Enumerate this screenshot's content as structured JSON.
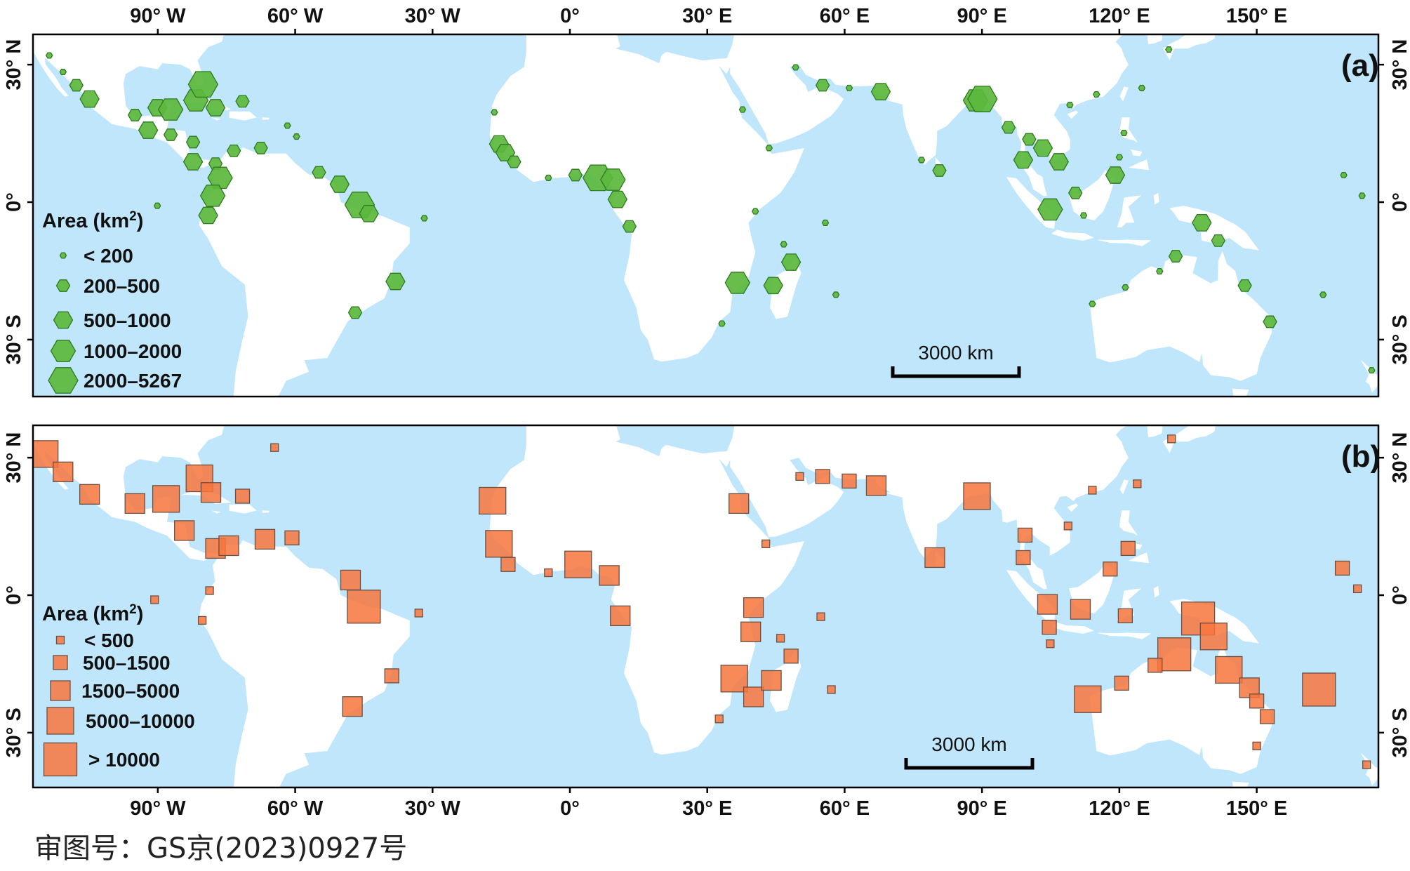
{
  "colors": {
    "ocean": "#bfe6fb",
    "land": "#ffffff",
    "hexagon_fill": "#5cb83c",
    "hexagon_stroke": "#2f7a22",
    "square_fill": "#f7763d",
    "square_stroke": "#6b5044"
  },
  "lon_ticks": [
    {
      "lon": -90,
      "label": "90° W"
    },
    {
      "lon": -60,
      "label": "60° W"
    },
    {
      "lon": -30,
      "label": "30° W"
    },
    {
      "lon": 0,
      "label": "0°"
    },
    {
      "lon": 30,
      "label": "30° E"
    },
    {
      "lon": 60,
      "label": "60° E"
    },
    {
      "lon": 90,
      "label": "90° E"
    },
    {
      "lon": 120,
      "label": "120° E"
    },
    {
      "lon": 150,
      "label": "150° E"
    }
  ],
  "lat_ticks": [
    {
      "lat": 30,
      "label": "30° N"
    },
    {
      "lat": 0,
      "label": "0°"
    },
    {
      "lat": -30,
      "label": "30° S"
    }
  ],
  "panels": [
    {
      "label": "(a)",
      "marker": "hexagon",
      "scale_bar": "3000 km",
      "legend": {
        "title": "Area (km",
        "title_sup": "2",
        "title_end": ")",
        "classes": [
          "< 200",
          "200–500",
          "500–1000",
          "1000–2000",
          "2000–5267"
        ]
      },
      "points": [
        [
          -113.7,
          32,
          0
        ],
        [
          -110.7,
          28.4,
          0
        ],
        [
          -107.8,
          25.5,
          1
        ],
        [
          -104.9,
          22.5,
          2
        ],
        [
          -95,
          19,
          1
        ],
        [
          -90.1,
          20.6,
          2
        ],
        [
          -87.2,
          20.2,
          3
        ],
        [
          -81.7,
          22.2,
          3
        ],
        [
          -80.1,
          25.7,
          4
        ],
        [
          -77.4,
          20.6,
          2
        ],
        [
          -71.5,
          22,
          1
        ],
        [
          -92.1,
          15.7,
          2
        ],
        [
          -87.2,
          14.7,
          1
        ],
        [
          -82.3,
          13.1,
          1
        ],
        [
          -82.3,
          8.8,
          2
        ],
        [
          -77.4,
          8.4,
          1
        ],
        [
          -76.4,
          5.3,
          3
        ],
        [
          -78,
          1.4,
          3
        ],
        [
          -79,
          -2.9,
          2
        ],
        [
          -90.1,
          -0.8,
          0
        ],
        [
          -73.4,
          11.2,
          1
        ],
        [
          -67.5,
          11.8,
          1
        ],
        [
          -61.7,
          16.7,
          0
        ],
        [
          -59.7,
          14.3,
          0
        ],
        [
          -54.8,
          6.5,
          1
        ],
        [
          -50.3,
          3.9,
          2
        ],
        [
          -45.9,
          -0.6,
          4
        ],
        [
          -43.9,
          -2.5,
          2
        ],
        [
          -31.8,
          -3.5,
          0
        ],
        [
          -38.1,
          -17.3,
          2
        ],
        [
          -46.9,
          -24.1,
          1
        ],
        [
          -16.5,
          19.6,
          0
        ],
        [
          -15.5,
          12.7,
          2
        ],
        [
          -14.1,
          10.8,
          2
        ],
        [
          -12.2,
          8.8,
          1
        ],
        [
          -4.7,
          5.3,
          0
        ],
        [
          1.2,
          5.9,
          1
        ],
        [
          6.1,
          5.3,
          4
        ],
        [
          9.4,
          4.9,
          3
        ],
        [
          10.4,
          0.6,
          2
        ],
        [
          13,
          -5.3,
          1
        ],
        [
          37.7,
          20.2,
          0
        ],
        [
          43.5,
          11.8,
          0
        ],
        [
          40.5,
          -2,
          0
        ],
        [
          36.6,
          -17.6,
          3
        ],
        [
          44.4,
          -18.2,
          2
        ],
        [
          48.3,
          -13.1,
          2
        ],
        [
          46.7,
          -9.2,
          0
        ],
        [
          33.2,
          -26.5,
          0
        ],
        [
          49.3,
          29.4,
          0
        ],
        [
          55.2,
          25.5,
          1
        ],
        [
          61,
          24.9,
          0
        ],
        [
          67.9,
          24.1,
          2
        ],
        [
          76.8,
          9.2,
          0
        ],
        [
          80.7,
          6.9,
          1
        ],
        [
          88.6,
          22.2,
          3
        ],
        [
          90.1,
          22.5,
          4
        ],
        [
          95.8,
          16.3,
          1
        ],
        [
          100.3,
          13.7,
          1
        ],
        [
          103.3,
          11.8,
          2
        ],
        [
          106.8,
          8.8,
          2
        ],
        [
          99,
          9.2,
          2
        ],
        [
          104.9,
          -1.6,
          3
        ],
        [
          110.4,
          2,
          1
        ],
        [
          112.2,
          -2.9,
          0
        ],
        [
          119.1,
          5.9,
          2
        ],
        [
          121,
          15.1,
          0
        ],
        [
          109.2,
          21.2,
          0
        ],
        [
          115,
          23.5,
          0
        ],
        [
          124.9,
          24.9,
          0
        ],
        [
          120,
          9.8,
          0
        ],
        [
          130.8,
          33.3,
          0
        ],
        [
          138,
          -4.5,
          2
        ],
        [
          141.6,
          -8.4,
          1
        ],
        [
          132.3,
          -11.8,
          1
        ],
        [
          128.8,
          -15.1,
          0
        ],
        [
          147.4,
          -18.2,
          1
        ],
        [
          152.9,
          -26.1,
          1
        ],
        [
          121.3,
          -18.6,
          0
        ],
        [
          114.1,
          -22.2,
          0
        ],
        [
          58.1,
          -20.2,
          0
        ],
        [
          55.8,
          -4.5,
          0
        ],
        [
          169,
          5.9,
          0
        ],
        [
          173,
          1.4,
          0
        ],
        [
          164.5,
          -20.2,
          0
        ],
        [
          175.1,
          -36.7,
          0
        ]
      ]
    },
    {
      "label": "(b)",
      "marker": "square",
      "scale_bar": "3000 km",
      "legend": {
        "title": "Area (km",
        "title_sup": "2",
        "title_end": ")",
        "classes": [
          "< 500",
          "500–1500",
          "1500–5000",
          "5000–10000",
          "> 10000"
        ]
      },
      "points": [
        [
          -114.7,
          30.8,
          3
        ],
        [
          -110.7,
          26.9,
          2
        ],
        [
          -104.9,
          22,
          2
        ],
        [
          -95,
          20,
          2
        ],
        [
          -88.2,
          21,
          3
        ],
        [
          -80.9,
          25.5,
          3
        ],
        [
          -78.4,
          22.4,
          2
        ],
        [
          -71.5,
          21.6,
          1
        ],
        [
          -84.2,
          14.1,
          2
        ],
        [
          -77.4,
          10.2,
          2
        ],
        [
          -74.5,
          10.8,
          2
        ],
        [
          -66.6,
          12.2,
          2
        ],
        [
          -60.7,
          12.5,
          1
        ],
        [
          -64.5,
          32.2,
          0
        ],
        [
          -47.9,
          3.3,
          2
        ],
        [
          -45,
          -2.5,
          4
        ],
        [
          -90.7,
          -1,
          0
        ],
        [
          -78.7,
          1,
          0
        ],
        [
          -80.3,
          -5.5,
          0
        ],
        [
          -33,
          -3.9,
          0
        ],
        [
          -38.9,
          -17.6,
          1
        ],
        [
          -47.5,
          -24.3,
          2
        ],
        [
          -16.9,
          20.6,
          3
        ],
        [
          -15.5,
          11.2,
          3
        ],
        [
          -13.5,
          6.7,
          1
        ],
        [
          -4.7,
          4.9,
          0
        ],
        [
          1.8,
          6.7,
          3
        ],
        [
          8.6,
          4.3,
          2
        ],
        [
          11,
          -4.5,
          2
        ],
        [
          36.9,
          20,
          2
        ],
        [
          42.8,
          11.2,
          0
        ],
        [
          40.1,
          -2.7,
          2
        ],
        [
          39.5,
          -8,
          2
        ],
        [
          35.9,
          -18.2,
          3
        ],
        [
          40.1,
          -22.2,
          2
        ],
        [
          44,
          -18.6,
          2
        ],
        [
          48.3,
          -13.3,
          1
        ],
        [
          46,
          -9.4,
          0
        ],
        [
          32.6,
          -27,
          0
        ],
        [
          50.2,
          25.9,
          0
        ],
        [
          55.2,
          25.9,
          1
        ],
        [
          61,
          24.9,
          1
        ],
        [
          66.9,
          23.9,
          2
        ],
        [
          79.7,
          8.2,
          2
        ],
        [
          88.9,
          21.6,
          3
        ],
        [
          99.4,
          13.1,
          1
        ],
        [
          99,
          8.2,
          1
        ],
        [
          104.3,
          -2,
          2
        ],
        [
          104.7,
          -7,
          1
        ],
        [
          104.9,
          -10.6,
          0
        ],
        [
          111.5,
          -3.1,
          2
        ],
        [
          118,
          5.7,
          1
        ],
        [
          121.9,
          10.2,
          1
        ],
        [
          121.3,
          -4.5,
          1
        ],
        [
          108.8,
          15.1,
          0
        ],
        [
          114.1,
          22.9,
          0
        ],
        [
          123.9,
          24.3,
          0
        ],
        [
          137.2,
          -5.1,
          4
        ],
        [
          140.6,
          -9,
          3
        ],
        [
          132,
          -12.9,
          4
        ],
        [
          113.1,
          -22.7,
          3
        ],
        [
          120.5,
          -19.2,
          1
        ],
        [
          127.8,
          -15.3,
          1
        ],
        [
          143.9,
          -16.3,
          3
        ],
        [
          148.4,
          -20.2,
          2
        ],
        [
          150,
          -23.1,
          1
        ],
        [
          152.3,
          -26.5,
          1
        ],
        [
          163.6,
          -20.6,
          4
        ],
        [
          168.7,
          5.9,
          1
        ],
        [
          172,
          1.4,
          0
        ],
        [
          174,
          -37,
          0
        ],
        [
          131.4,
          34.1,
          0
        ],
        [
          57.1,
          -20.6,
          0
        ],
        [
          54.8,
          -4.7,
          0
        ],
        [
          150,
          -32.9,
          0
        ]
      ]
    }
  ],
  "caption": "审图号：GS京(2023)0927号"
}
